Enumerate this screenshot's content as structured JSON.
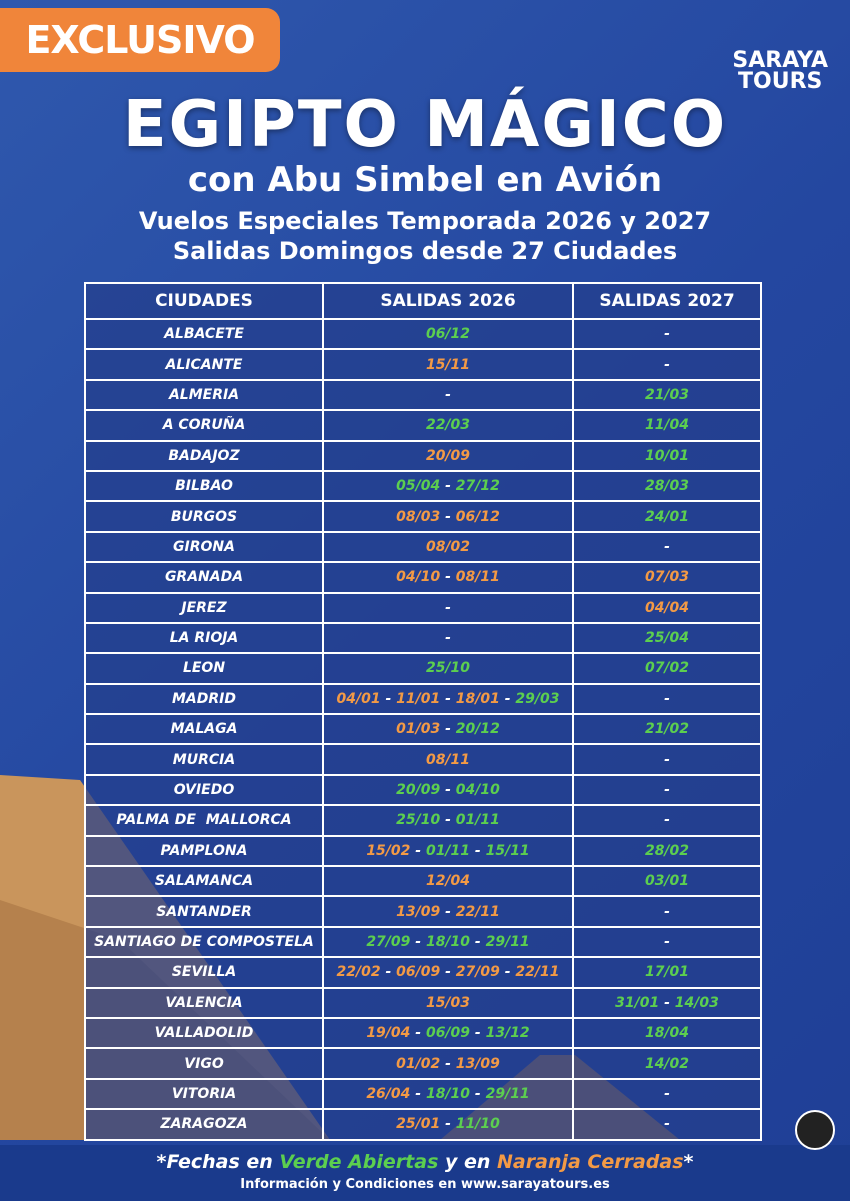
{
  "badge": "EXCLUSIVO",
  "logo": {
    "line1": "SARAYA",
    "line2": "TOURS"
  },
  "title": "EGIPTO MÁGICO",
  "subtitle": "con Abu Simbel en Avión",
  "info_lines": [
    "Vuelos Especiales Temporada 2026 y 2027",
    "Salidas Domingos desde 27 Ciudades"
  ],
  "colors": {
    "open": "#5ccf4f",
    "closed": "#f39a45",
    "none": "#ffffff"
  },
  "date_separator": "-",
  "table": {
    "headers": [
      "CIUDADES",
      "SALIDAS 2026",
      "SALIDAS 2027"
    ],
    "rows": [
      {
        "city": "ALBACETE",
        "s2026": [
          {
            "text": "06/12",
            "status": "open"
          }
        ],
        "s2027": [
          {
            "text": "-",
            "status": "none"
          }
        ]
      },
      {
        "city": "ALICANTE",
        "s2026": [
          {
            "text": "15/11",
            "status": "closed"
          }
        ],
        "s2027": [
          {
            "text": "-",
            "status": "none"
          }
        ]
      },
      {
        "city": "ALMERIA",
        "s2026": [
          {
            "text": "-",
            "status": "none"
          }
        ],
        "s2027": [
          {
            "text": "21/03",
            "status": "open"
          }
        ]
      },
      {
        "city": "A CORUÑA",
        "s2026": [
          {
            "text": "22/03",
            "status": "open"
          }
        ],
        "s2027": [
          {
            "text": "11/04",
            "status": "open"
          }
        ]
      },
      {
        "city": "BADAJOZ",
        "s2026": [
          {
            "text": "20/09",
            "status": "closed"
          }
        ],
        "s2027": [
          {
            "text": "10/01",
            "status": "open"
          }
        ]
      },
      {
        "city": "BILBAO",
        "s2026": [
          {
            "text": "05/04",
            "status": "open"
          },
          {
            "text": "27/12",
            "status": "open"
          }
        ],
        "s2027": [
          {
            "text": "28/03",
            "status": "open"
          }
        ]
      },
      {
        "city": "BURGOS",
        "s2026": [
          {
            "text": "08/03",
            "status": "closed"
          },
          {
            "text": "06/12",
            "status": "closed"
          }
        ],
        "s2027": [
          {
            "text": "24/01",
            "status": "open"
          }
        ]
      },
      {
        "city": "GIRONA",
        "s2026": [
          {
            "text": "08/02",
            "status": "closed"
          }
        ],
        "s2027": [
          {
            "text": "-",
            "status": "none"
          }
        ]
      },
      {
        "city": "GRANADA",
        "s2026": [
          {
            "text": "04/10",
            "status": "closed"
          },
          {
            "text": "08/11",
            "status": "closed"
          }
        ],
        "s2027": [
          {
            "text": "07/03",
            "status": "closed"
          }
        ]
      },
      {
        "city": "JEREZ",
        "s2026": [
          {
            "text": "-",
            "status": "none"
          }
        ],
        "s2027": [
          {
            "text": "04/04",
            "status": "closed"
          }
        ]
      },
      {
        "city": "LA RIOJA",
        "s2026": [
          {
            "text": "-",
            "status": "none"
          }
        ],
        "s2027": [
          {
            "text": "25/04",
            "status": "open"
          }
        ]
      },
      {
        "city": "LEON",
        "s2026": [
          {
            "text": "25/10",
            "status": "open"
          }
        ],
        "s2027": [
          {
            "text": "07/02",
            "status": "open"
          }
        ]
      },
      {
        "city": "MADRID",
        "s2026": [
          {
            "text": "04/01",
            "status": "closed"
          },
          {
            "text": "11/01",
            "status": "closed"
          },
          {
            "text": "18/01",
            "status": "closed"
          },
          {
            "text": "29/03",
            "status": "open"
          }
        ],
        "s2027": [
          {
            "text": "-",
            "status": "none"
          }
        ]
      },
      {
        "city": "MALAGA",
        "s2026": [
          {
            "text": "01/03",
            "status": "closed"
          },
          {
            "text": "20/12",
            "status": "open"
          }
        ],
        "s2027": [
          {
            "text": "21/02",
            "status": "open"
          }
        ]
      },
      {
        "city": "MURCIA",
        "s2026": [
          {
            "text": "08/11",
            "status": "closed"
          }
        ],
        "s2027": [
          {
            "text": "-",
            "status": "none"
          }
        ]
      },
      {
        "city": "OVIEDO",
        "s2026": [
          {
            "text": "20/09",
            "status": "open"
          },
          {
            "text": "04/10",
            "status": "open"
          }
        ],
        "s2027": [
          {
            "text": "-",
            "status": "none"
          }
        ]
      },
      {
        "city": "PALMA DE  MALLORCA",
        "s2026": [
          {
            "text": "25/10",
            "status": "open"
          },
          {
            "text": "01/11",
            "status": "open"
          }
        ],
        "s2027": [
          {
            "text": "-",
            "status": "none"
          }
        ]
      },
      {
        "city": "PAMPLONA",
        "s2026": [
          {
            "text": "15/02",
            "status": "closed"
          },
          {
            "text": "01/11",
            "status": "open"
          },
          {
            "text": "15/11",
            "status": "open"
          }
        ],
        "s2027": [
          {
            "text": "28/02",
            "status": "open"
          }
        ]
      },
      {
        "city": "SALAMANCA",
        "s2026": [
          {
            "text": "12/04",
            "status": "closed"
          }
        ],
        "s2027": [
          {
            "text": "03/01",
            "status": "open"
          }
        ]
      },
      {
        "city": "SANTANDER",
        "s2026": [
          {
            "text": "13/09",
            "status": "closed"
          },
          {
            "text": "22/11",
            "status": "closed"
          }
        ],
        "s2027": [
          {
            "text": "-",
            "status": "none"
          }
        ]
      },
      {
        "city": "SANTIAGO DE COMPOSTELA",
        "s2026": [
          {
            "text": "27/09",
            "status": "open"
          },
          {
            "text": "18/10",
            "status": "open"
          },
          {
            "text": "29/11",
            "status": "open"
          }
        ],
        "s2027": [
          {
            "text": "-",
            "status": "none"
          }
        ]
      },
      {
        "city": "SEVILLA",
        "s2026": [
          {
            "text": "22/02",
            "status": "closed"
          },
          {
            "text": "06/09",
            "status": "closed"
          },
          {
            "text": "27/09",
            "status": "closed"
          },
          {
            "text": "22/11",
            "status": "closed"
          }
        ],
        "s2027": [
          {
            "text": "17/01",
            "status": "open"
          }
        ]
      },
      {
        "city": "VALENCIA",
        "s2026": [
          {
            "text": "15/03",
            "status": "closed"
          }
        ],
        "s2027": [
          {
            "text": "31/01",
            "status": "open"
          },
          {
            "text": "14/03",
            "status": "open"
          }
        ]
      },
      {
        "city": "VALLADOLID",
        "s2026": [
          {
            "text": "19/04",
            "status": "closed"
          },
          {
            "text": "06/09",
            "status": "open"
          },
          {
            "text": "13/12",
            "status": "open"
          }
        ],
        "s2027": [
          {
            "text": "18/04",
            "status": "open"
          }
        ]
      },
      {
        "city": "VIGO",
        "s2026": [
          {
            "text": "01/02",
            "status": "closed"
          },
          {
            "text": "13/09",
            "status": "closed"
          }
        ],
        "s2027": [
          {
            "text": "14/02",
            "status": "open"
          }
        ]
      },
      {
        "city": "VITORIA",
        "s2026": [
          {
            "text": "26/04",
            "status": "closed"
          },
          {
            "text": "18/10",
            "status": "open"
          },
          {
            "text": "29/11",
            "status": "open"
          }
        ],
        "s2027": [
          {
            "text": "-",
            "status": "none"
          }
        ]
      },
      {
        "city": "ZARAGOZA",
        "s2026": [
          {
            "text": "25/01",
            "status": "closed"
          },
          {
            "text": "11/10",
            "status": "open"
          }
        ],
        "s2027": [
          {
            "text": "-",
            "status": "none"
          }
        ]
      }
    ]
  },
  "footnote": [
    {
      "text": "*Fechas en ",
      "status": "none"
    },
    {
      "text": "Verde Abiertas",
      "status": "open"
    },
    {
      "text": " y en ",
      "status": "none"
    },
    {
      "text": "Naranja Cerradas",
      "status": "closed"
    },
    {
      "text": "*",
      "status": "none"
    }
  ],
  "footer": "Información y Condiciones en www.sarayatours.es"
}
